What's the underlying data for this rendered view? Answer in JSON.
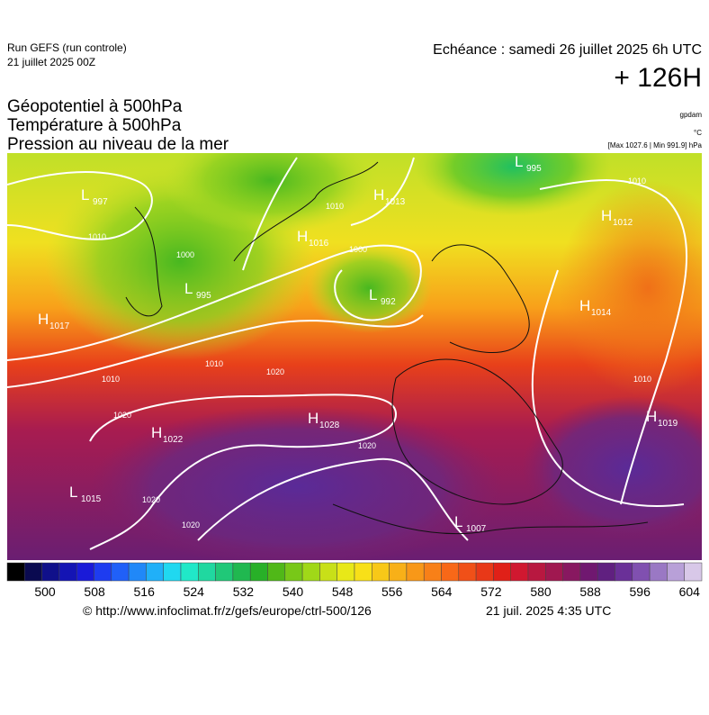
{
  "header": {
    "run": "Run GEFS (run controle)",
    "run_date": "21 juillet 2025 00Z",
    "valid": "Echéance : samedi 26 juillet 2025 6h UTC",
    "lead": "+ 126H",
    "fields": [
      "Géopotentiel à 500hPa",
      "Température à 500hPa",
      "Pression au niveau de la mer"
    ],
    "units": [
      "gpdam",
      "°C",
      "[Max 1027.6 | Min 991.9] hPa"
    ]
  },
  "pressure_centers": [
    {
      "letter": "L",
      "value": 997
    },
    {
      "letter": "H",
      "value": 1013
    },
    {
      "letter": "H",
      "value": 1016
    },
    {
      "letter": "L",
      "value": 995
    },
    {
      "letter": "L",
      "value": 992
    },
    {
      "letter": "H",
      "value": 1017
    },
    {
      "letter": "H",
      "value": 1012
    },
    {
      "letter": "H",
      "value": 1014
    },
    {
      "letter": "H",
      "value": 1022
    },
    {
      "letter": "H",
      "value": 1028
    },
    {
      "letter": "L",
      "value": 1015
    },
    {
      "letter": "L",
      "value": 1007
    },
    {
      "letter": "H",
      "value": 1019
    },
    {
      "letter": "L",
      "value": 995
    }
  ],
  "isobar_labels": [
    1010,
    1000,
    1010,
    1010,
    1020,
    1020,
    1020,
    1020,
    1010,
    1000,
    1010,
    1010,
    1020
  ],
  "colorbar": {
    "ticks": [
      500,
      508,
      516,
      524,
      532,
      540,
      548,
      556,
      564,
      572,
      580,
      588,
      596,
      604
    ],
    "colors": [
      "#000000",
      "#0a0a50",
      "#10108a",
      "#1414b4",
      "#1a1ad8",
      "#1e3cf0",
      "#2060f8",
      "#2088f8",
      "#20b0f8",
      "#20d8f0",
      "#20e8c8",
      "#20d8a0",
      "#20c878",
      "#20b850",
      "#28b028",
      "#50b818",
      "#78c818",
      "#a0d818",
      "#c8e018",
      "#e8e818",
      "#f8e018",
      "#f8c818",
      "#f8b018",
      "#f89818",
      "#f88018",
      "#f86818",
      "#f05018",
      "#e83818",
      "#e02018",
      "#d01830",
      "#b81840",
      "#a01850",
      "#881860",
      "#701870",
      "#602080",
      "#6a3098",
      "#8050b0",
      "#9a78c4",
      "#b8a0d8",
      "#d8c8e8"
    ]
  },
  "footer": {
    "url": "© http://www.infoclimat.fr/z/gefs/europe/ctrl-500/126",
    "generated": "21 juil. 2025  4:35 UTC"
  }
}
